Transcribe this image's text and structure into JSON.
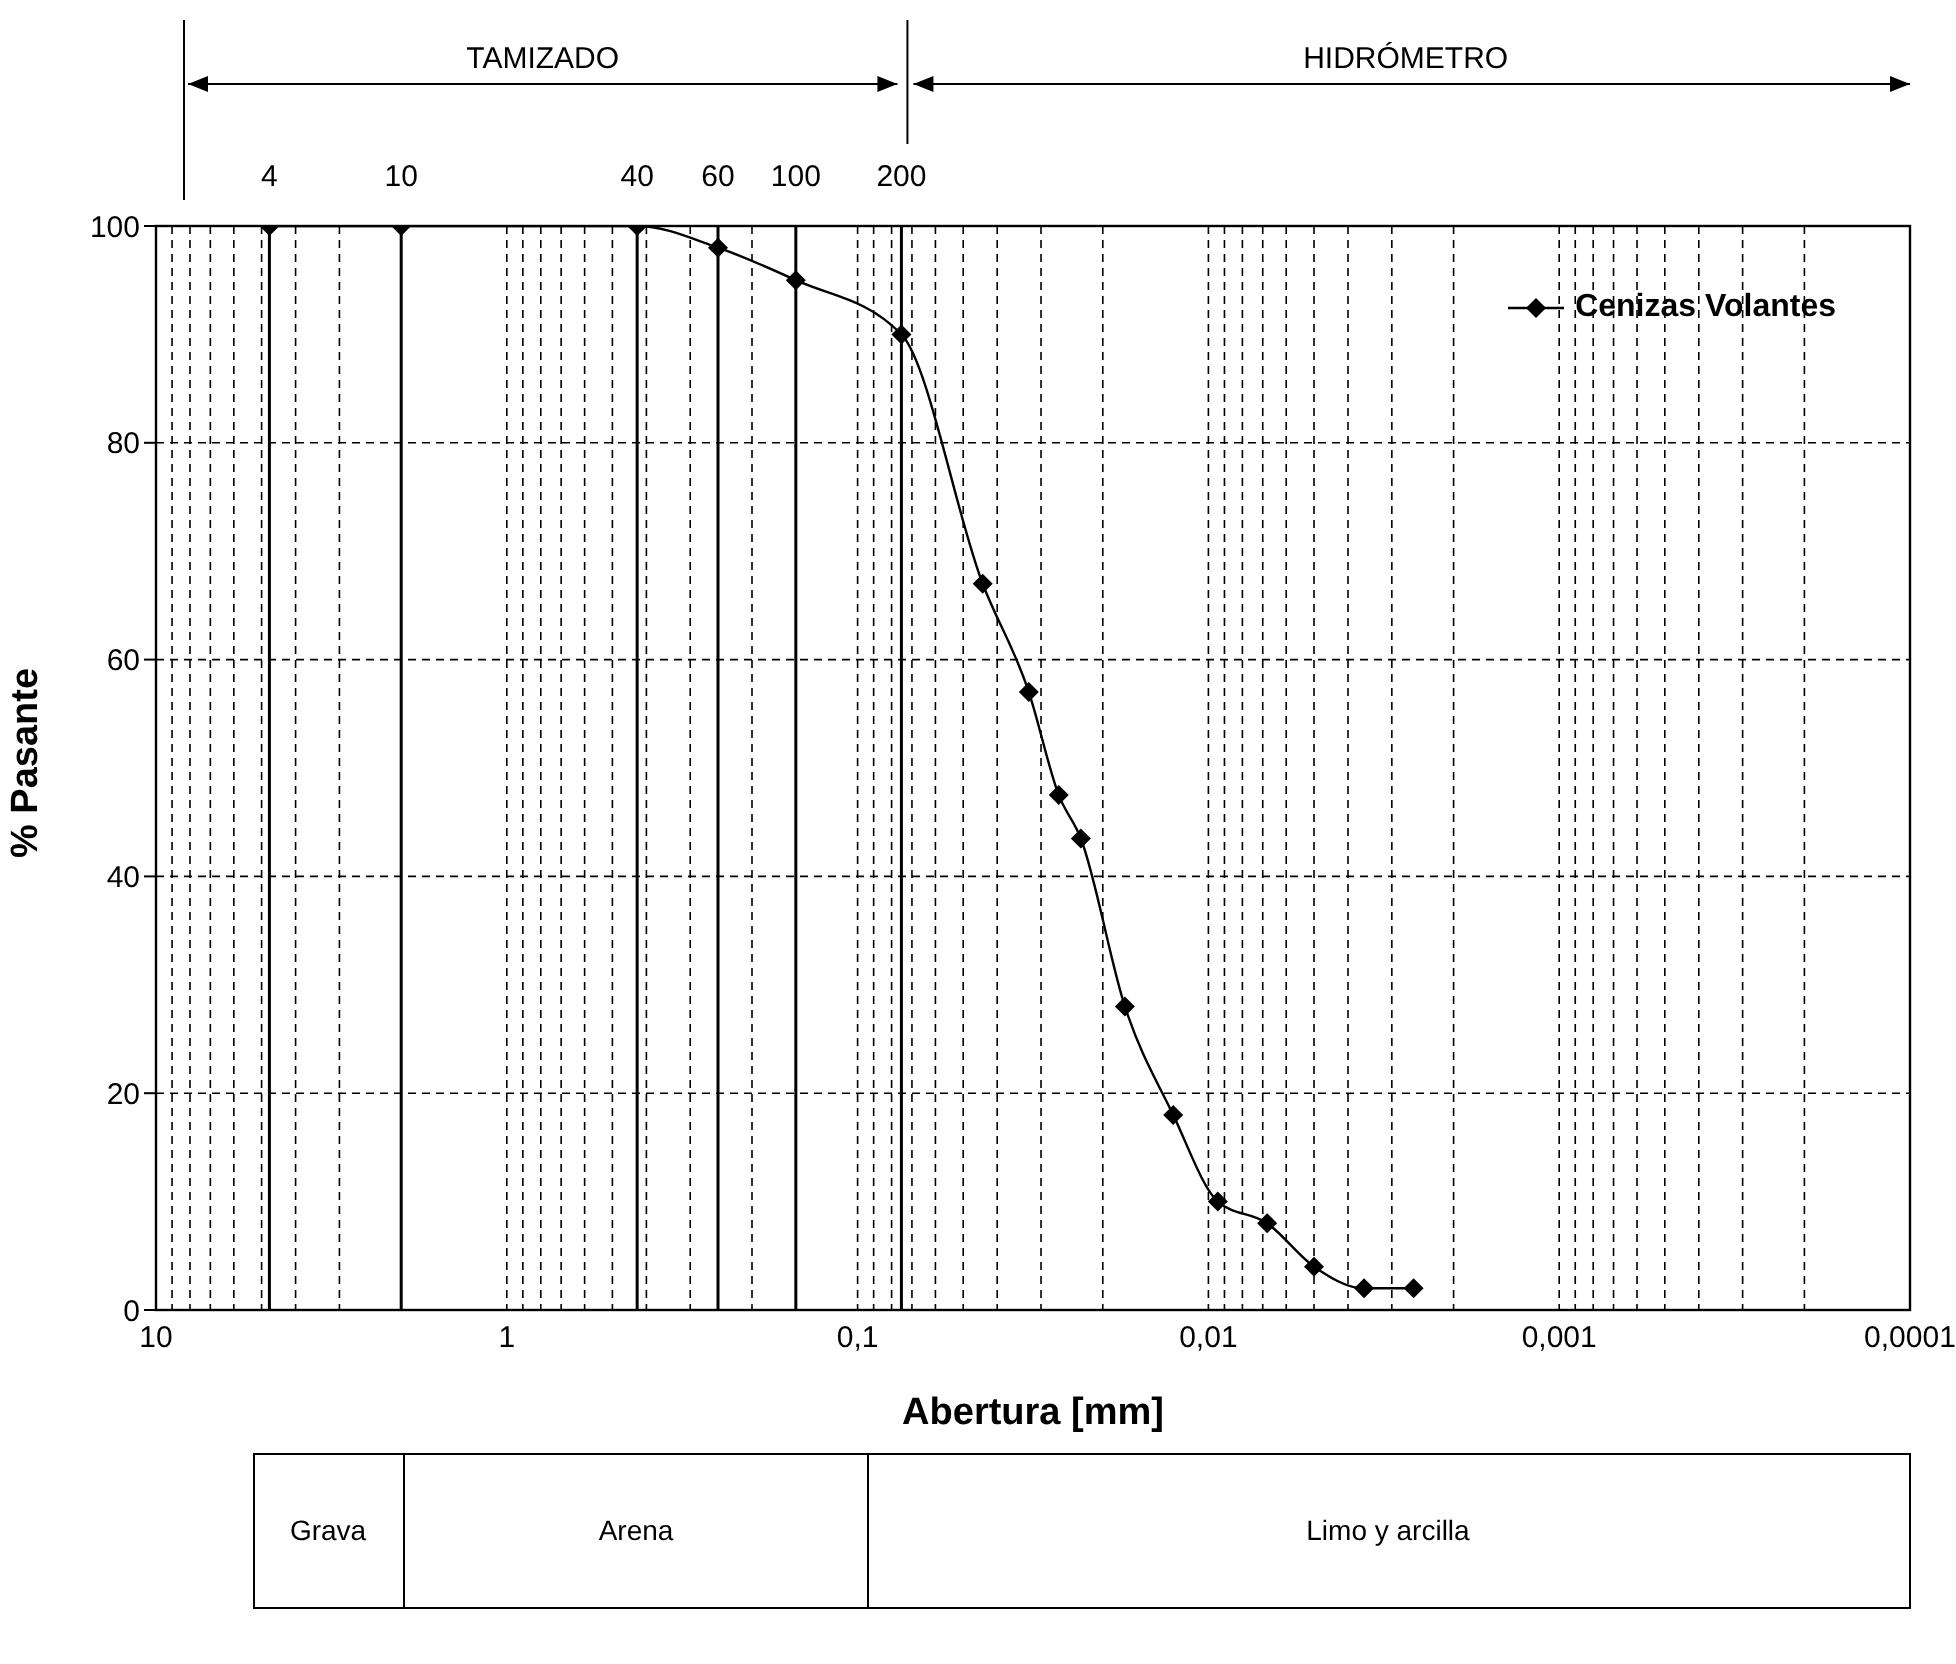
{
  "chart_data": {
    "type": "line",
    "xlabel": "Abertura [mm]",
    "ylabel": "% Pasante",
    "x": [
      4.75,
      2,
      0.425,
      0.25,
      0.15,
      0.075,
      0.044,
      0.0325,
      0.0267,
      0.0231,
      0.0173,
      0.0126,
      0.0094,
      0.0068,
      0.005,
      0.0036,
      0.0026
    ],
    "series": [
      {
        "name": "Cenizas Volantes",
        "color": "#000000",
        "values": [
          100,
          100,
          100,
          98,
          95,
          90,
          67,
          57,
          47.5,
          43.5,
          28,
          18,
          10,
          8,
          4,
          2,
          2
        ]
      }
    ],
    "log": "x",
    "xlim": [
      10,
      0.0001
    ],
    "xticks": [
      10,
      {
        "value": 9,
        "label": null
      },
      {
        "value": 8,
        "label": null
      },
      {
        "value": 7,
        "label": null
      },
      {
        "value": 6,
        "label": null
      },
      {
        "value": 5,
        "label": null
      },
      {
        "value": 4,
        "label": null
      },
      {
        "value": 3,
        "label": null
      },
      {
        "value": 2,
        "label": null
      },
      1,
      {
        "value": 0.9,
        "label": null
      },
      {
        "value": 0.8,
        "label": null
      },
      {
        "value": 0.7,
        "label": null
      },
      {
        "value": 0.6,
        "label": null
      },
      {
        "value": 0.5,
        "label": null
      },
      {
        "value": 0.4,
        "label": null
      },
      {
        "value": 0.3,
        "label": null
      },
      {
        "value": 0.2,
        "label": null
      },
      {
        "value": 0.1,
        "label": "0,1"
      },
      {
        "value": 0.09,
        "label": null
      },
      {
        "value": 0.08,
        "label": null
      },
      {
        "value": 0.07,
        "label": null
      },
      {
        "value": 0.06,
        "label": null
      },
      {
        "value": 0.05,
        "label": null
      },
      {
        "value": 0.04,
        "label": null
      },
      {
        "value": 0.03,
        "label": null
      },
      {
        "value": 0.02,
        "label": null
      },
      {
        "value": 0.01,
        "label": "0,01"
      },
      {
        "value": 0.009,
        "label": null
      },
      {
        "value": 0.008,
        "label": null
      },
      {
        "value": 0.007,
        "label": null
      },
      {
        "value": 0.006,
        "label": null
      },
      {
        "value": 0.005,
        "label": null
      },
      {
        "value": 0.004,
        "label": null
      },
      {
        "value": 0.003,
        "label": null
      },
      {
        "value": 0.002,
        "label": null
      },
      {
        "value": 0.001,
        "label": "0,001"
      },
      {
        "value": 0.0009,
        "label": null
      },
      {
        "value": 0.0008,
        "label": null
      },
      {
        "value": 0.0007,
        "label": null
      },
      {
        "value": 0.0006,
        "label": null
      },
      {
        "value": 0.0005,
        "label": null
      },
      {
        "value": 0.0004,
        "label": null
      },
      {
        "value": 0.0003,
        "label": null
      },
      {
        "value": 0.0002,
        "label": null
      },
      {
        "value": 0.0001,
        "label": "0,0001"
      }
    ],
    "ylim": [
      0,
      100
    ],
    "yticks": [
      0,
      20,
      40,
      60,
      80,
      100
    ],
    "grid": true,
    "marker": "diamond",
    "line_style": "solid",
    "legend": "top right",
    "ref_lines": [
      {
        "axis": "x",
        "value": 4.75
      },
      {
        "axis": "x",
        "value": 2
      },
      {
        "axis": "x",
        "value": 0.425
      },
      {
        "axis": "x",
        "value": 0.25
      },
      {
        "axis": "x",
        "value": 0.15
      },
      {
        "axis": "x",
        "value": 0.075
      }
    ],
    "annotations": [
      "TAMIZADO",
      "HIDRÓMETRO",
      "Grava",
      "Arena",
      "Limo y arcilla",
      "4",
      "10",
      "40",
      "60",
      "100",
      "200"
    ]
  }
}
